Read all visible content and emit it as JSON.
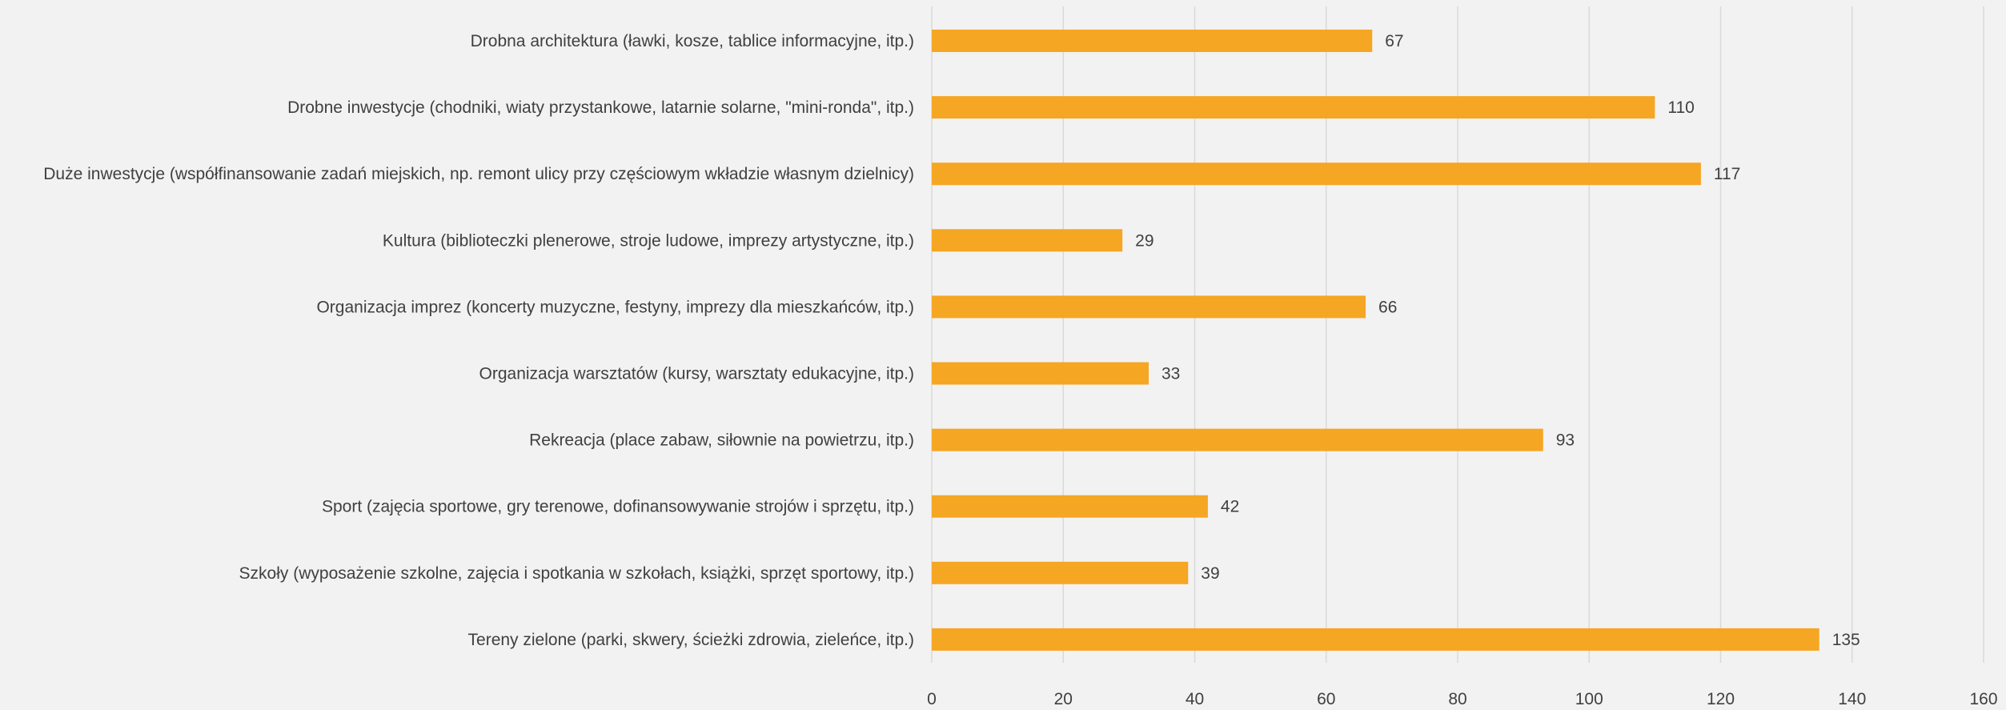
{
  "chart_data": {
    "type": "bar",
    "orientation": "horizontal",
    "categories": [
      "Drobna architektura (ławki, kosze, tablice informacyjne, itp.)",
      "Drobne inwestycje (chodniki, wiaty przystankowe, latarnie solarne, \"mini-ronda\", itp.)",
      "Duże inwestycje (współfinansowanie zadań miejskich, np. remont ulicy przy częściowym wkładzie własnym dzielnicy)",
      "Kultura (biblioteczki plenerowe, stroje ludowe, imprezy artystyczne, itp.)",
      "Organizacja imprez (koncerty muzyczne, festyny, imprezy dla mieszkańców, itp.)",
      "Organizacja warsztatów (kursy, warsztaty edukacyjne, itp.)",
      "Rekreacja (place zabaw, siłownie na powietrzu, itp.)",
      "Sport (zajęcia sportowe, gry terenowe, dofinansowywanie strojów i sprzętu, itp.)",
      "Szkoły (wyposażenie szkolne, zajęcia i spotkania w szkołach, książki, sprzęt sportowy, itp.)",
      "Tereny zielone (parki, skwery, ścieżki zdrowia, zieleńce, itp.)"
    ],
    "values": [
      67,
      110,
      117,
      29,
      66,
      33,
      93,
      42,
      39,
      135
    ],
    "data_labels": [
      "67",
      "110",
      "117",
      "29",
      "66",
      "33",
      "93",
      "42",
      "39",
      "135"
    ],
    "xlim": [
      0,
      160
    ],
    "x_ticks": [
      0,
      20,
      40,
      60,
      80,
      100,
      120,
      140,
      160
    ],
    "x_tick_labels": [
      "0",
      "20",
      "40",
      "60",
      "80",
      "100",
      "120",
      "140",
      "160"
    ],
    "grid": true,
    "legend": "none",
    "title": "",
    "xlabel": "",
    "ylabel": "",
    "colors": {
      "bar": "#f5a623",
      "background": "#f2f2f2",
      "grid": "#d9d9d9",
      "text": "#404040"
    }
  }
}
